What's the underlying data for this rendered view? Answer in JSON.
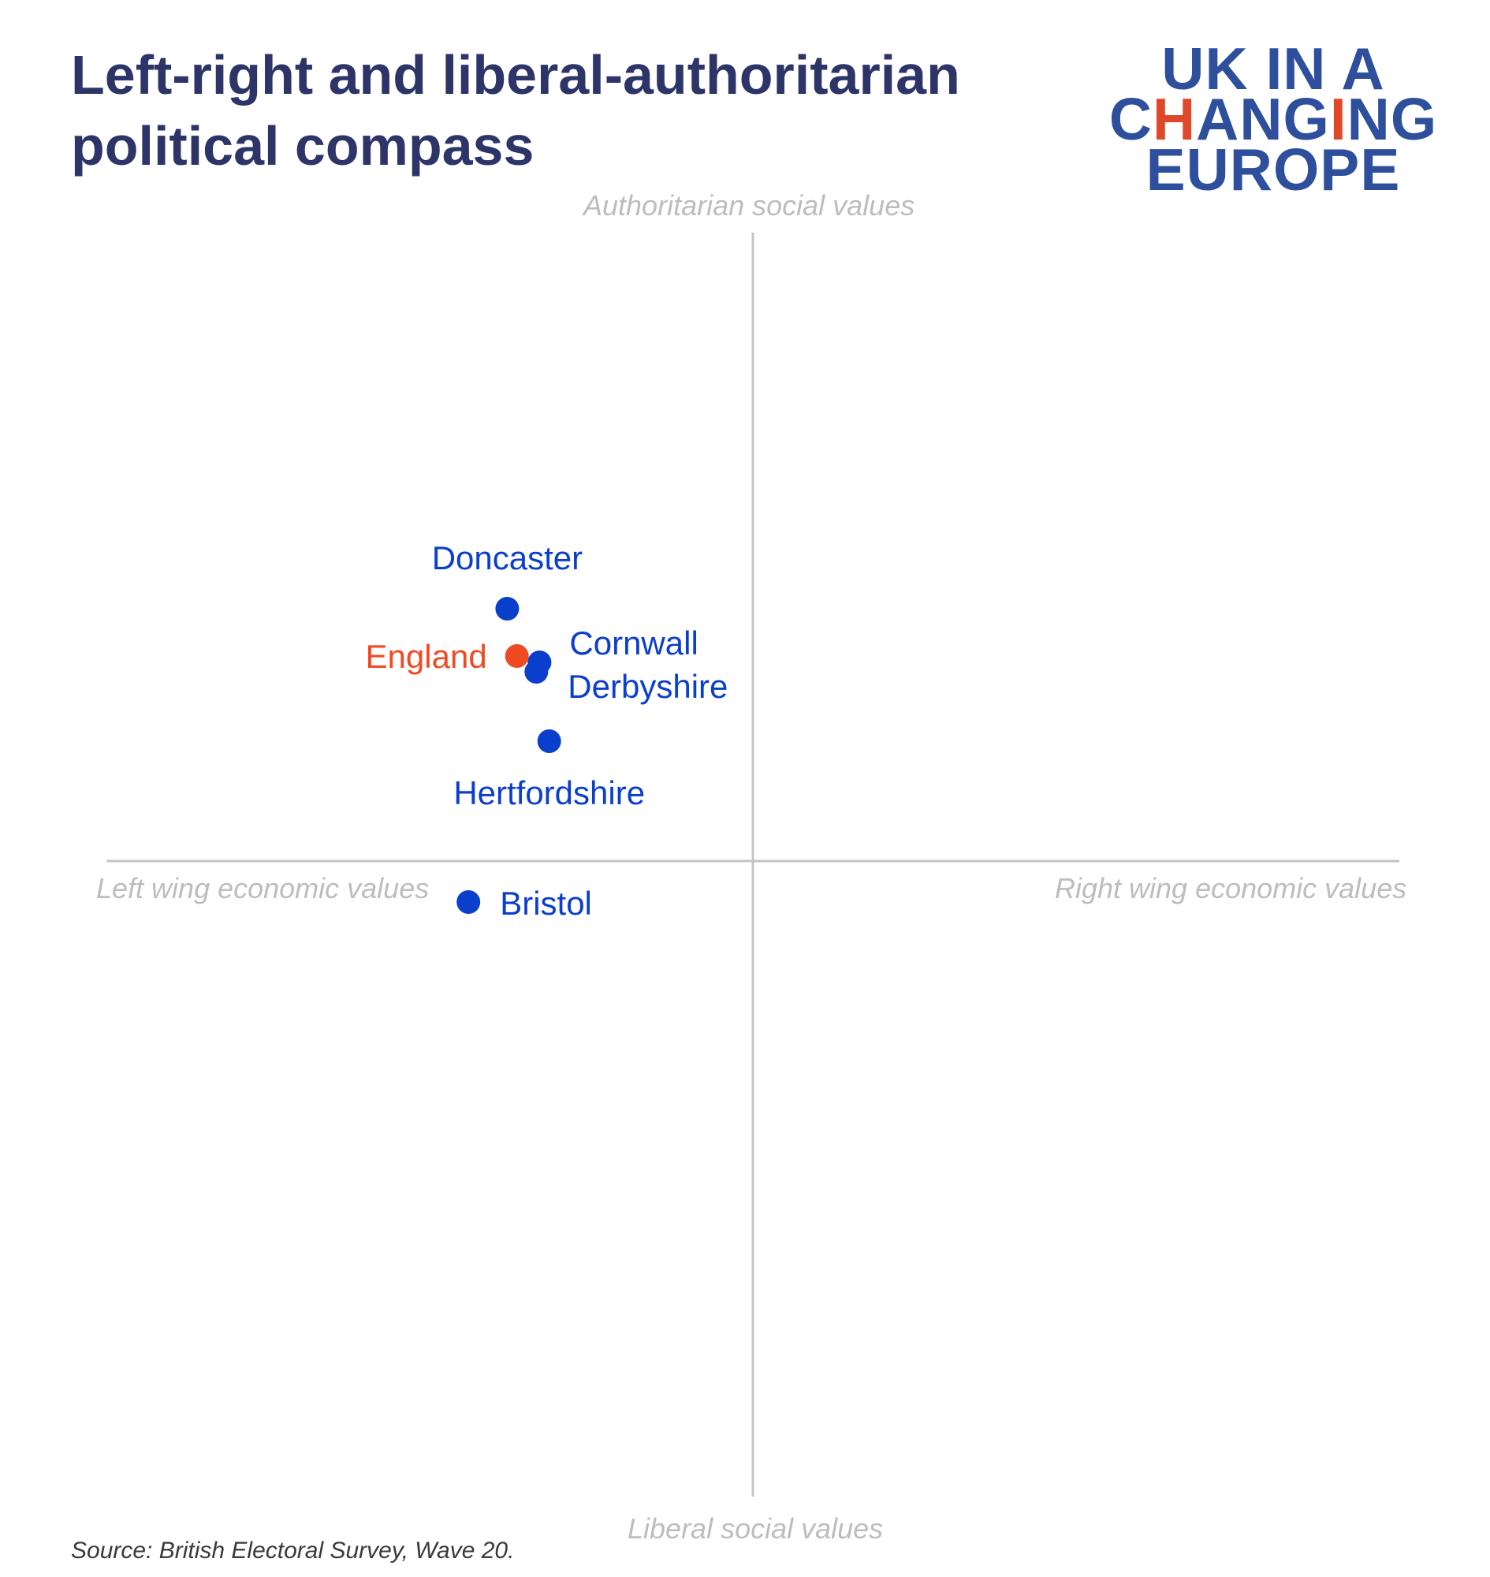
{
  "header": {
    "title_line1": "Left-right and liberal-authoritarian",
    "title_line2": "political compass"
  },
  "logo": {
    "line1": "UK IN A",
    "line2_a": "C",
    "line2_b": "H",
    "line2_c": "AN",
    "line2_d": "G",
    "line2_e": "I",
    "line2_f": "NG",
    "line3": "EUROPE"
  },
  "colors": {
    "title": "#2d3468",
    "point": "#0a3fcc",
    "highlight": "#f04a23",
    "axis": "#c4c4c4"
  },
  "chart_data": {
    "type": "scatter",
    "title": "Left-right and liberal-authoritarian political compass",
    "xlabel_left": "Left wing economic values",
    "xlabel_right": "Right wing economic values",
    "ylabel_top": "Authoritarian social values",
    "ylabel_bottom": "Liberal social values",
    "xlim": [
      -1,
      1
    ],
    "ylim": [
      -1,
      1
    ],
    "grid": false,
    "points": [
      {
        "name": "Doncaster",
        "x": -0.38,
        "y": 0.4,
        "highlight": false,
        "label_pos": "above"
      },
      {
        "name": "England",
        "x": -0.365,
        "y": 0.325,
        "highlight": true,
        "label_pos": "left"
      },
      {
        "name": "Cornwall",
        "x": -0.33,
        "y": 0.315,
        "highlight": false,
        "label_pos": "right-up"
      },
      {
        "name": "Derbyshire",
        "x": -0.335,
        "y": 0.3,
        "highlight": false,
        "label_pos": "right-down"
      },
      {
        "name": "Hertfordshire",
        "x": -0.315,
        "y": 0.19,
        "highlight": false,
        "label_pos": "below"
      },
      {
        "name": "Bristol",
        "x": -0.44,
        "y": -0.065,
        "highlight": false,
        "label_pos": "right"
      }
    ]
  },
  "footer": {
    "source": "Source: British Electoral Survey, Wave 20."
  }
}
